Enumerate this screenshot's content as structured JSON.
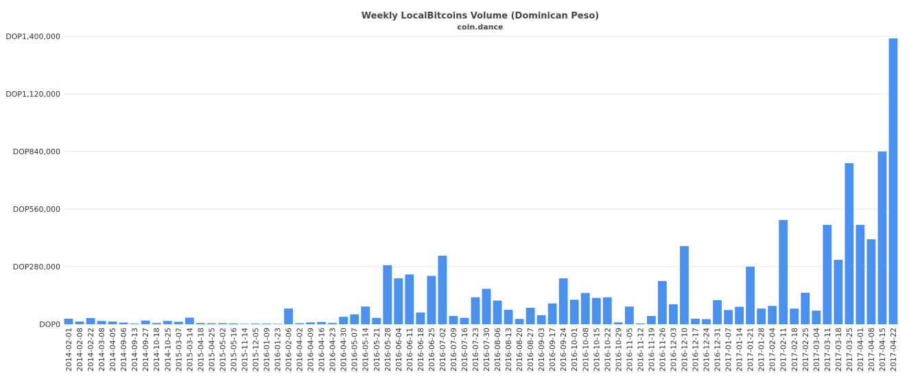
{
  "chart_data": {
    "type": "bar",
    "title": "Weekly LocalBitcoins Volume (Dominican Peso)",
    "subtitle": "coin.dance",
    "categories": [
      "2014-02-01",
      "2014-02-08",
      "2014-02-22",
      "2014-03-08",
      "2014-04-05",
      "2014-09-06",
      "2014-09-13",
      "2014-09-27",
      "2014-10-18",
      "2014-10-25",
      "2015-03-07",
      "2015-03-14",
      "2015-04-18",
      "2015-04-25",
      "2015-05-02",
      "2015-05-16",
      "2015-11-14",
      "2015-12-05",
      "2016-01-09",
      "2016-01-23",
      "2016-02-06",
      "2016-04-02",
      "2016-04-09",
      "2016-04-16",
      "2016-04-23",
      "2016-04-30",
      "2016-05-07",
      "2016-05-14",
      "2016-05-21",
      "2016-05-28",
      "2016-06-04",
      "2016-06-11",
      "2016-06-18",
      "2016-06-25",
      "2016-07-02",
      "2016-07-09",
      "2016-07-16",
      "2016-07-23",
      "2016-07-30",
      "2016-08-06",
      "2016-08-13",
      "2016-08-20",
      "2016-08-27",
      "2016-09-03",
      "2016-09-17",
      "2016-09-24",
      "2016-10-01",
      "2016-10-08",
      "2016-10-15",
      "2016-10-22",
      "2016-10-29",
      "2016-11-05",
      "2016-11-12",
      "2016-11-19",
      "2016-11-26",
      "2016-12-03",
      "2016-12-10",
      "2016-12-17",
      "2016-12-24",
      "2016-12-31",
      "2017-01-07",
      "2017-01-14",
      "2017-01-21",
      "2017-01-28",
      "2017-02-04",
      "2017-02-11",
      "2017-02-18",
      "2017-02-25",
      "2017-03-04",
      "2017-03-11",
      "2017-03-18",
      "2017-03-25",
      "2017-04-01",
      "2017-04-08",
      "2017-04-15",
      "2017-04-22"
    ],
    "values": [
      27000,
      13000,
      30000,
      16000,
      13000,
      8000,
      3000,
      18000,
      6000,
      16000,
      12000,
      32000,
      6000,
      5000,
      5000,
      4000,
      2000,
      3000,
      3000,
      2000,
      76000,
      5000,
      9000,
      11000,
      6000,
      36000,
      48000,
      86000,
      31000,
      287000,
      223000,
      242000,
      57000,
      235000,
      333000,
      40000,
      31000,
      131000,
      172000,
      115000,
      70000,
      26000,
      80000,
      44000,
      101000,
      223000,
      119000,
      152000,
      128000,
      131000,
      9000,
      86000,
      4000,
      40000,
      210000,
      97000,
      380000,
      27000,
      25000,
      117000,
      69000,
      85000,
      280000,
      76000,
      89000,
      507000,
      76000,
      153000,
      66000,
      483000,
      313000,
      783000,
      483000,
      413000,
      840000,
      1390000
    ],
    "color": "#4a90f0",
    "ylim": [
      0,
      1400000
    ],
    "yticks": [
      {
        "value": 0,
        "label": "DOP0"
      },
      {
        "value": 280000,
        "label": "DOP280,000"
      },
      {
        "value": 560000,
        "label": "DOP560,000"
      },
      {
        "value": 840000,
        "label": "DOP840,000"
      },
      {
        "value": 1120000,
        "label": "DOP1,120,000"
      },
      {
        "value": 1400000,
        "label": "DOP1,400,000"
      }
    ],
    "grid": true
  }
}
